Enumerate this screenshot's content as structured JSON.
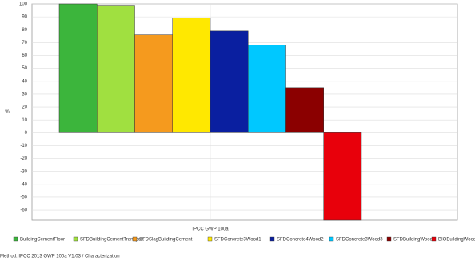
{
  "chart_data": {
    "type": "bar",
    "categories": [
      "IPCC GWP 100a"
    ],
    "y_label": "%",
    "footer": "Method: IPCC 2013 GWP 100a V1.03 / Characterization",
    "ylim": [
      -68,
      100
    ],
    "yticks": [
      100,
      90,
      80,
      70,
      60,
      50,
      40,
      30,
      20,
      10,
      0,
      -10,
      -20,
      -30,
      -40,
      -50,
      -60
    ],
    "grid": true,
    "series": [
      {
        "name": "BuildingCementFloor",
        "color": "#3cb53c",
        "values": [
          100
        ]
      },
      {
        "name": "SFDBuildingCementTransport",
        "color": "#a0e040",
        "values": [
          99
        ]
      },
      {
        "name": "SFDSlagBuildingCement",
        "color": "#f59a1e",
        "values": [
          76
        ]
      },
      {
        "name": "SFDConcrete3Wood1",
        "color": "#ffe800",
        "values": [
          89
        ]
      },
      {
        "name": "SFDConcrete4Wood2",
        "color": "#0a1fa0",
        "values": [
          79
        ]
      },
      {
        "name": "SFDConcrete3Wood3",
        "color": "#00c8ff",
        "values": [
          68
        ]
      },
      {
        "name": "SFDBuildingWood",
        "color": "#8b0000",
        "values": [
          35
        ]
      },
      {
        "name": "BIOBuildingWood",
        "color": "#e8000b",
        "values": [
          -68
        ]
      }
    ]
  }
}
